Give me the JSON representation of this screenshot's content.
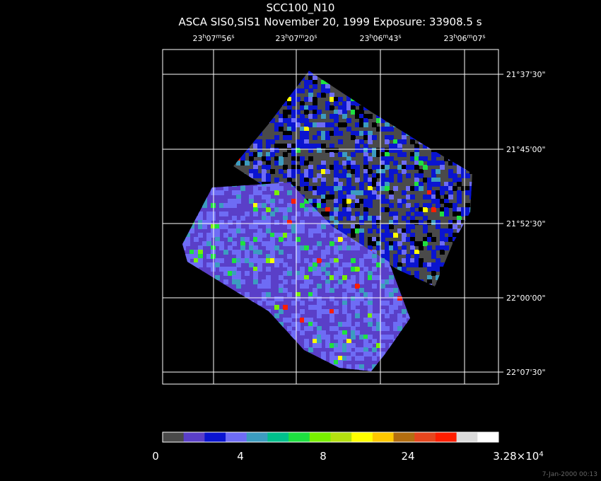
{
  "header": {
    "title": "SCC100_N10",
    "subtitle": "ASCA SIS0,SIS1 November 20, 1999 Exposure: 33908.5 s"
  },
  "ra_labels": [
    "23h07m56s",
    "23h07m20s",
    "23h06m43s",
    "23h06m07s"
  ],
  "dec_labels": [
    "21°37'30\"",
    "21°45'00\"",
    "21°52'30\"",
    "22°00'00\"",
    "22°07'30\""
  ],
  "colorbar": {
    "colors": [
      "#4a4a4a",
      "#5a3fc8",
      "#0a14d0",
      "#6e6cf5",
      "#3c9cc0",
      "#00c08c",
      "#1ee040",
      "#78f000",
      "#b4e010",
      "#ffff00",
      "#ffc800",
      "#b46e10",
      "#e6461e",
      "#ff1e00",
      "#dcdcdc",
      "#ffffff"
    ],
    "labels": [
      "0",
      "4",
      "8",
      "24",
      {
        "mantissa": "3.28×10",
        "exponent": "4"
      }
    ]
  },
  "footer": "7-Jan-2000 00:13"
}
